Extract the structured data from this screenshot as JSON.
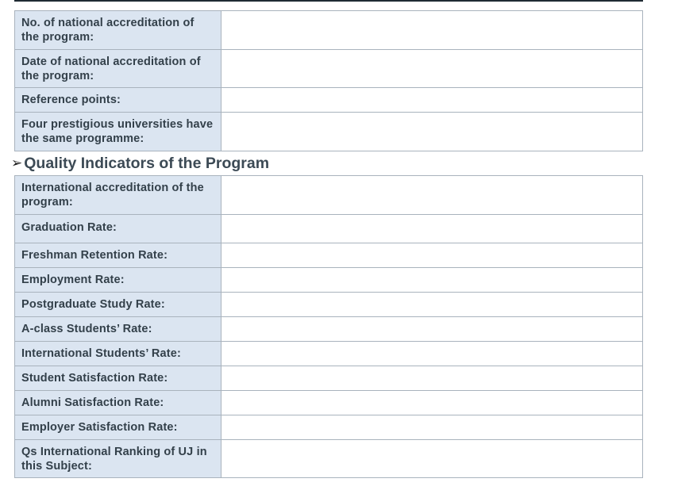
{
  "national_section": {
    "rows": [
      {
        "label": "No. of national accreditation of the program:",
        "value": ""
      },
      {
        "label": "Date of national accreditation of the program:",
        "value": ""
      },
      {
        "label": "Reference points:",
        "value": ""
      },
      {
        "label": "Four prestigious universities have the same programme:",
        "value": ""
      }
    ]
  },
  "quality_section": {
    "bullet_icon": "arrowhead-bullet-icon",
    "heading": "Quality Indicators of the Program",
    "rows": [
      {
        "label": "International accreditation of the program:",
        "value": ""
      },
      {
        "label": "Graduation Rate:",
        "value": ""
      },
      {
        "label": "Freshman Retention Rate:",
        "value": ""
      },
      {
        "label": "Employment Rate:",
        "value": ""
      },
      {
        "label": "Postgraduate Study Rate:",
        "value": ""
      },
      {
        "label": "A-class Students’ Rate:",
        "value": ""
      },
      {
        "label": "International Students’ Rate:",
        "value": ""
      },
      {
        "label": "Student Satisfaction Rate:",
        "value": ""
      },
      {
        "label": "Alumni Satisfaction Rate:",
        "value": ""
      },
      {
        "label": "Employer Satisfaction Rate:",
        "value": ""
      },
      {
        "label": "Qs International Ranking of UJ in this Subject:",
        "value": ""
      }
    ]
  },
  "colors": {
    "label_background": "#dbe5f1",
    "label_text": "#33404a",
    "border": "#a9b3bd",
    "heading_text": "#3c4a55"
  }
}
